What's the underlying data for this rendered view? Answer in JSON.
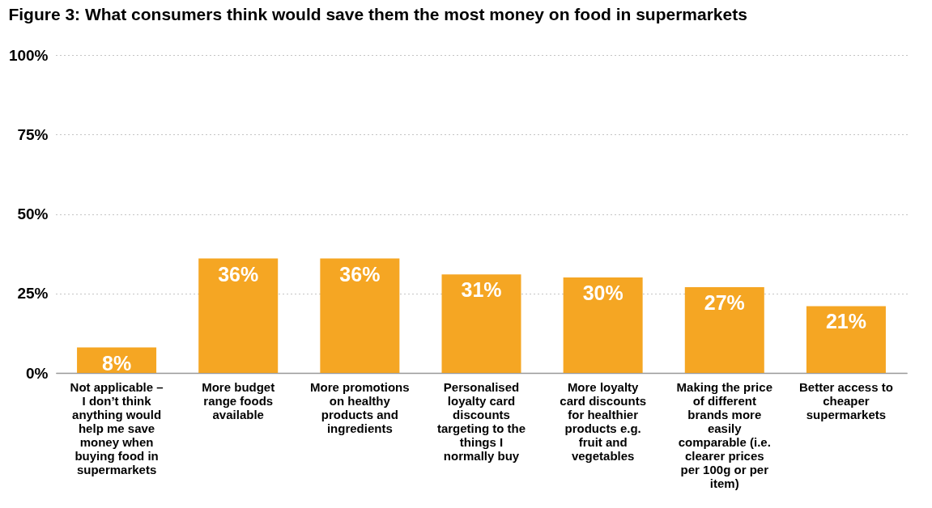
{
  "chart_data": {
    "type": "bar",
    "title": "Figure 3: What consumers think would save them the most money on food in supermarkets",
    "categories": [
      "Not applicable – I don’t think anything would help me save money when buying food in supermarkets",
      "More budget range foods available",
      "More promotions on healthy products and ingredients",
      "Personalised loyalty card discounts targeting to the things I normally buy",
      "More loyalty card discounts for healthier products e.g. fruit and vegetables",
      "Making the price of different brands more easily comparable (i.e. clearer prices per 100g or per item)",
      "Better access to cheaper supermarkets"
    ],
    "values": [
      8,
      36,
      36,
      31,
      30,
      27,
      21
    ],
    "color": "#f5a623",
    "ylim": [
      0,
      100
    ],
    "yticks": [
      {
        "value": 0,
        "label": "0%"
      },
      {
        "value": 25,
        "label": "25%"
      },
      {
        "value": 50,
        "label": "50%"
      },
      {
        "value": 75,
        "label": "75%"
      },
      {
        "value": 100,
        "label": "100%"
      }
    ],
    "value_labels": [
      "8%",
      "36%",
      "36%",
      "31%",
      "30%",
      "27%",
      "21%"
    ],
    "grid": "y"
  }
}
